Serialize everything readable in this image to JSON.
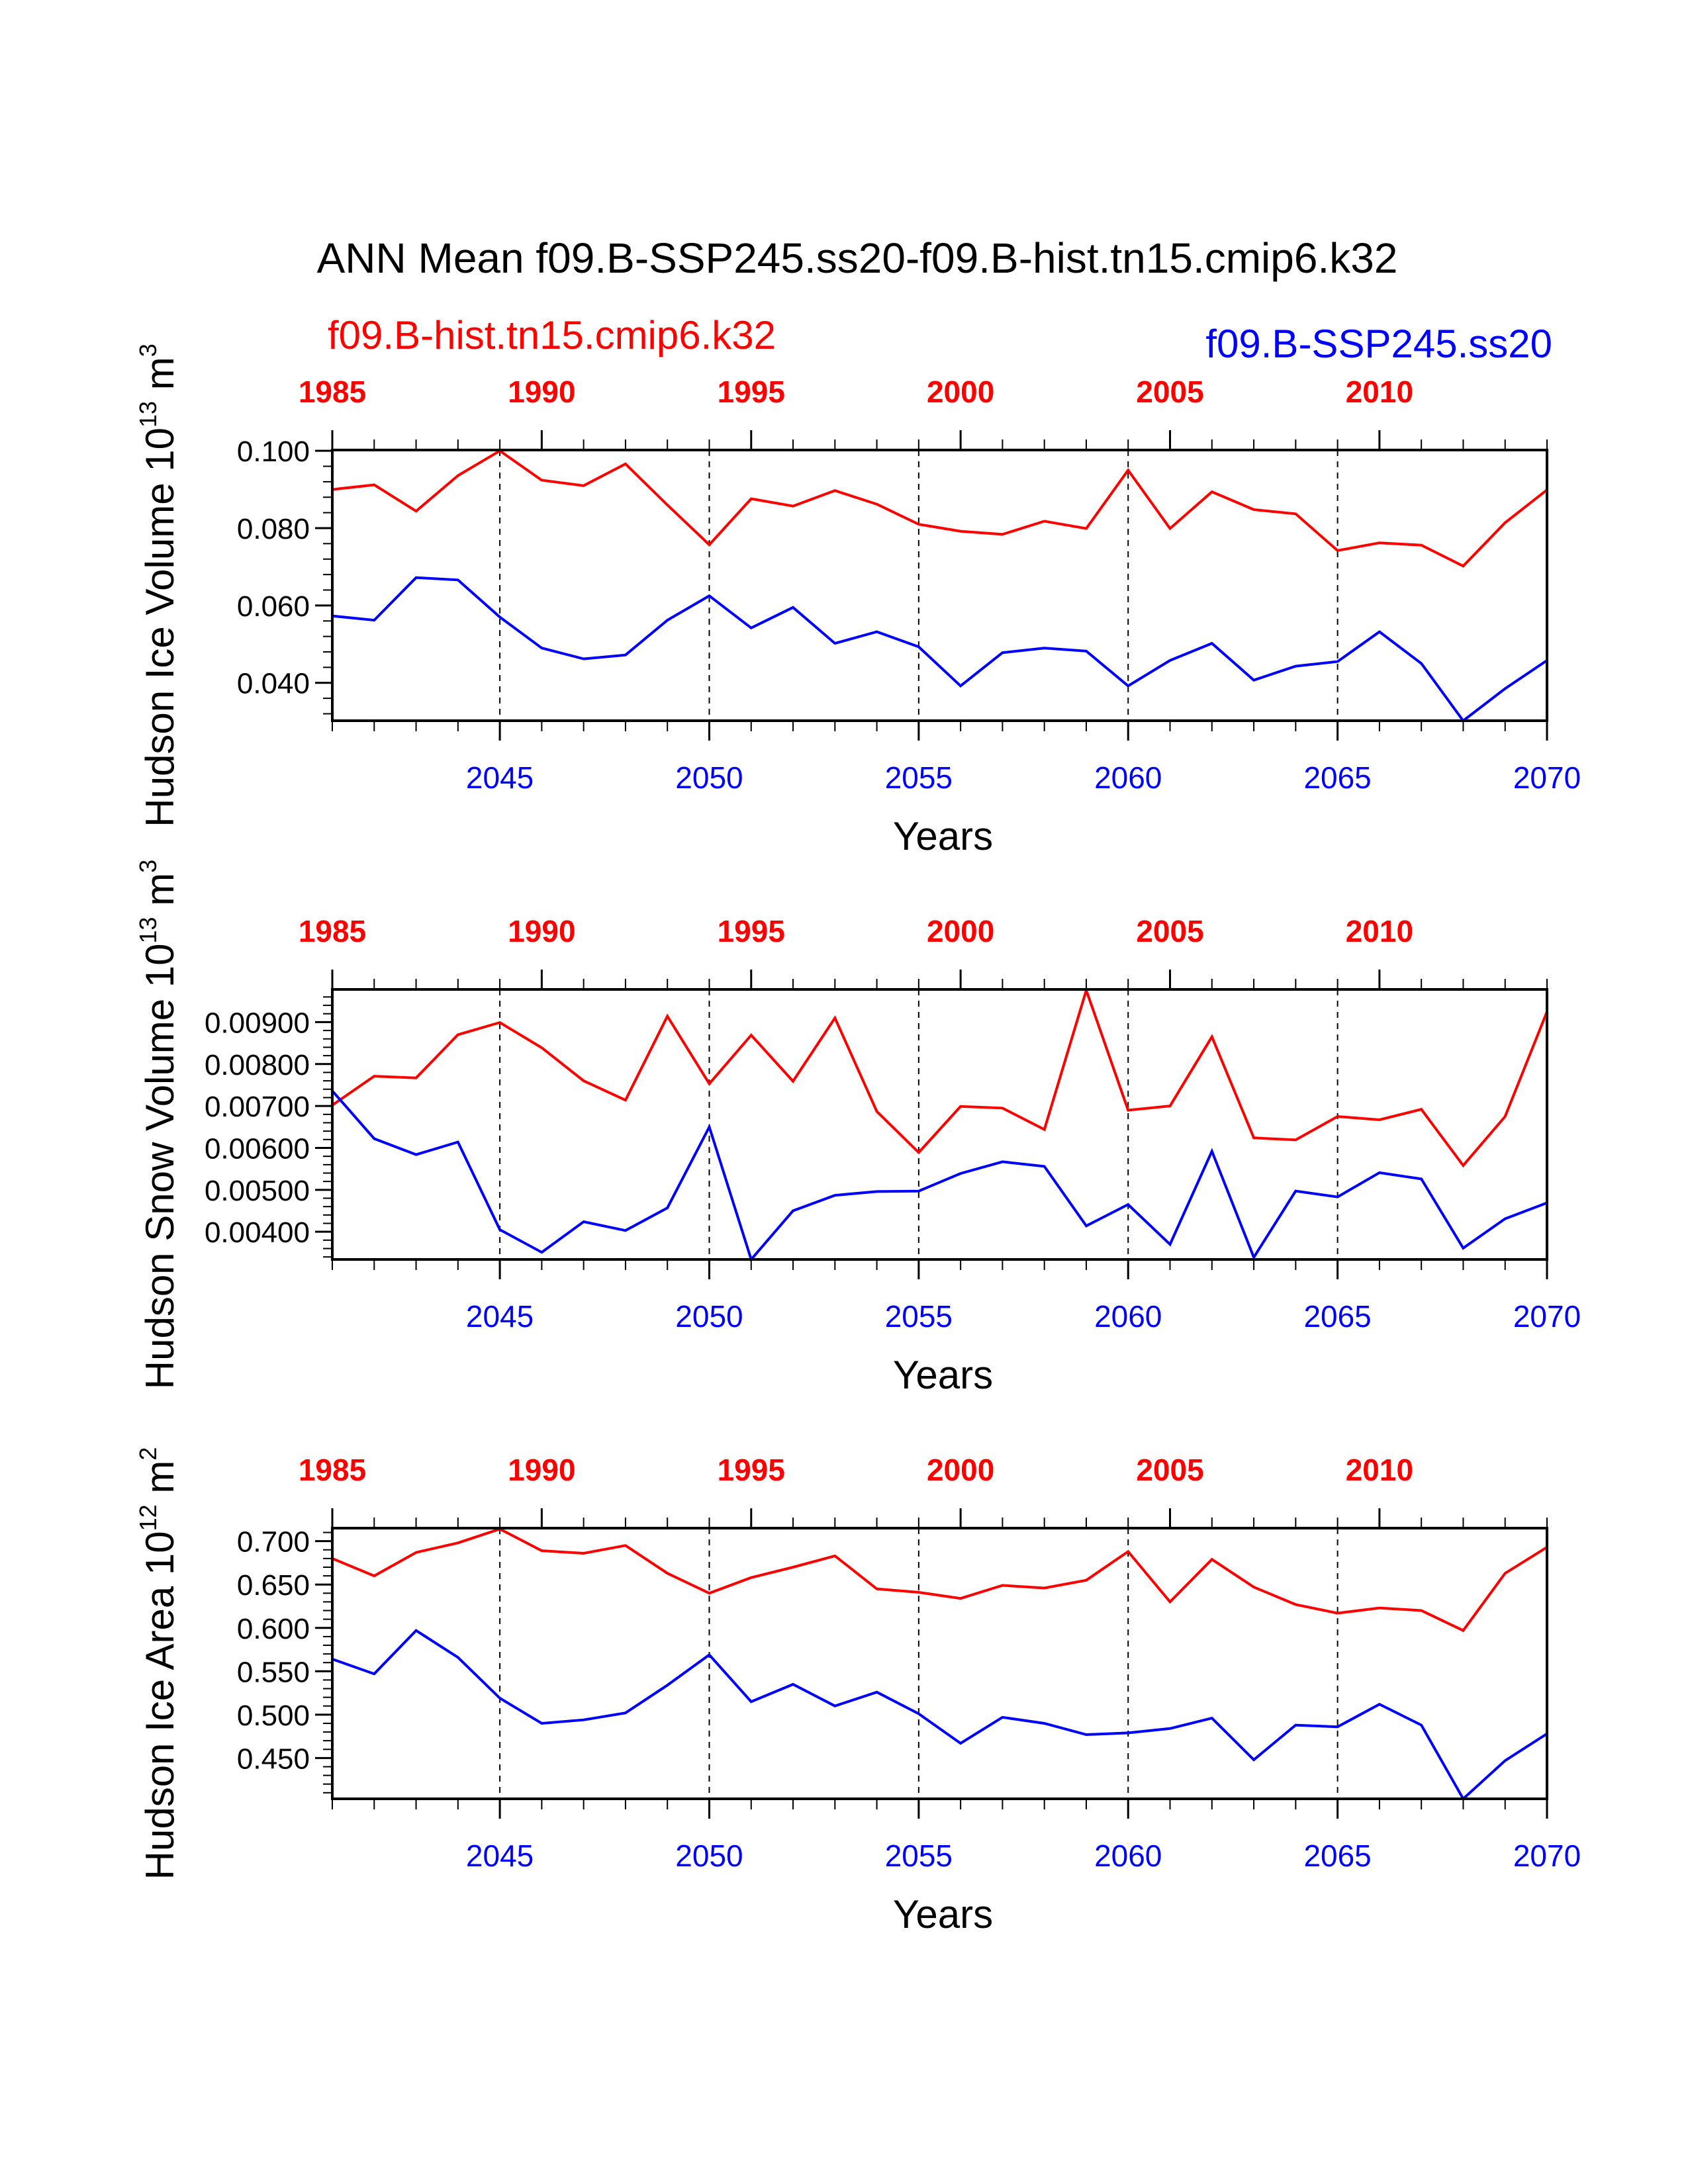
{
  "title": "ANN Mean f09.B-SSP245.ss20-f09.B-hist.tn15.cmip6.k32",
  "legend": {
    "left": {
      "text": "f09.B-hist.tn15.cmip6.k32",
      "color": "#ff0000"
    },
    "right": {
      "text": "f09.B-SSP245.ss20",
      "color": "#0000ff"
    }
  },
  "colors": {
    "hist": "#ff0000",
    "ssp": "#0000ff",
    "axis": "#000000"
  },
  "chart_data": [
    {
      "type": "line",
      "ylabel": "Hudson Ice Volume 10",
      "ylabel_exp": "13",
      "ylabel_unit": "m",
      "ylabel_unit_exp": "3",
      "xlabel": "Years",
      "ylim": [
        0.0302,
        0.1002
      ],
      "yticks": [
        0.04,
        0.06,
        0.08,
        0.1
      ],
      "yticklabels": [
        "0.040",
        "0.060",
        "0.080",
        "0.100"
      ],
      "minor_step": 0.004,
      "bottom_axis": {
        "range": [
          2041,
          2070
        ],
        "ticks": [
          2045,
          2050,
          2055,
          2060,
          2065,
          2070
        ],
        "labels": [
          "2045",
          "2050",
          "2055",
          "2060",
          "2065",
          "2070"
        ]
      },
      "top_axis": {
        "range": [
          1985,
          2014
        ],
        "ticks": [
          1985,
          1990,
          1995,
          2000,
          2005,
          2010
        ],
        "labels": [
          "1985",
          "1990",
          "1995",
          "2000",
          "2005",
          "2010"
        ]
      },
      "series": [
        {
          "name": "f09.B-hist.tn15.cmip6.k32",
          "color": "#ff0000",
          "x_start": 1985,
          "values": [
            0.09,
            0.0912,
            0.0844,
            0.0936,
            0.1,
            0.0924,
            0.091,
            0.0966,
            0.086,
            0.0757,
            0.0876,
            0.0857,
            0.0897,
            0.0862,
            0.081,
            0.0792,
            0.0784,
            0.0818,
            0.0799,
            0.095,
            0.0799,
            0.0894,
            0.0848,
            0.0837,
            0.0742,
            0.0762,
            0.0756,
            0.0702,
            0.0814,
            0.0899
          ]
        },
        {
          "name": "f09.B-SSP245.ss20",
          "color": "#0000ff",
          "x_start": 2041,
          "values": [
            0.0573,
            0.0562,
            0.0672,
            0.0666,
            0.057,
            0.049,
            0.0462,
            0.0472,
            0.0562,
            0.0625,
            0.0542,
            0.0595,
            0.0502,
            0.0532,
            0.0493,
            0.0392,
            0.0478,
            0.049,
            0.0482,
            0.0392,
            0.0458,
            0.0502,
            0.0407,
            0.0443,
            0.0455,
            0.0532,
            0.045,
            0.0302,
            0.0385,
            0.0458
          ]
        }
      ]
    },
    {
      "type": "line",
      "ylabel": "Hudson Snow Volume 10",
      "ylabel_exp": "13",
      "ylabel_unit": "m",
      "ylabel_unit_exp": "3",
      "xlabel": "Years",
      "ylim": [
        0.00334,
        0.00978
      ],
      "yticks": [
        0.004,
        0.005,
        0.006,
        0.007,
        0.008,
        0.009
      ],
      "yticklabels": [
        "0.00400",
        "0.00500",
        "0.00600",
        "0.00700",
        "0.00800",
        "0.00900"
      ],
      "minor_step": 0.0002,
      "bottom_axis": {
        "range": [
          2041,
          2070
        ],
        "ticks": [
          2045,
          2050,
          2055,
          2060,
          2065,
          2070
        ],
        "labels": [
          "2045",
          "2050",
          "2055",
          "2060",
          "2065",
          "2070"
        ]
      },
      "top_axis": {
        "range": [
          1985,
          2014
        ],
        "ticks": [
          1985,
          1990,
          1995,
          2000,
          2005,
          2010
        ],
        "labels": [
          "1985",
          "1990",
          "1995",
          "2000",
          "2005",
          "2010"
        ]
      },
      "series": [
        {
          "name": "f09.B-hist.tn15.cmip6.k32",
          "color": "#ff0000",
          "x_start": 1985,
          "values": [
            0.00702,
            0.00771,
            0.00767,
            0.0087,
            0.00899,
            0.00839,
            0.0076,
            0.00714,
            0.00914,
            0.00753,
            0.00869,
            0.00759,
            0.0091,
            0.00687,
            0.00589,
            0.00699,
            0.00695,
            0.00644,
            0.00976,
            0.0069,
            0.007,
            0.00865,
            0.00624,
            0.00619,
            0.00675,
            0.00667,
            0.00692,
            0.00558,
            0.00675,
            0.00925
          ]
        },
        {
          "name": "f09.B-SSP245.ss20",
          "color": "#0000ff",
          "x_start": 2041,
          "values": [
            0.00736,
            0.00622,
            0.00584,
            0.00614,
            0.00405,
            0.00351,
            0.00424,
            0.00403,
            0.00457,
            0.0065,
            0.00334,
            0.0045,
            0.00487,
            0.00496,
            0.00497,
            0.00539,
            0.00567,
            0.00556,
            0.00414,
            0.00465,
            0.0037,
            0.00592,
            0.00339,
            0.00497,
            0.00483,
            0.00541,
            0.00526,
            0.00361,
            0.00431,
            0.00469
          ]
        }
      ]
    },
    {
      "type": "line",
      "ylabel": "Hudson Ice Area 10",
      "ylabel_exp": "12",
      "ylabel_unit": "m",
      "ylabel_unit_exp": "2",
      "xlabel": "Years",
      "ylim": [
        0.403,
        0.715
      ],
      "yticks": [
        0.45,
        0.5,
        0.55,
        0.6,
        0.65,
        0.7
      ],
      "yticklabels": [
        "0.450",
        "0.500",
        "0.550",
        "0.600",
        "0.650",
        "0.700"
      ],
      "minor_step": 0.01,
      "bottom_axis": {
        "range": [
          2041,
          2070
        ],
        "ticks": [
          2045,
          2050,
          2055,
          2060,
          2065,
          2070
        ],
        "labels": [
          "2045",
          "2050",
          "2055",
          "2060",
          "2065",
          "2070"
        ]
      },
      "top_axis": {
        "range": [
          1985,
          2014
        ],
        "ticks": [
          1985,
          1990,
          1995,
          2000,
          2005,
          2010
        ],
        "labels": [
          "1985",
          "1990",
          "1995",
          "2000",
          "2005",
          "2010"
        ]
      },
      "series": [
        {
          "name": "f09.B-hist.tn15.cmip6.k32",
          "color": "#ff0000",
          "x_start": 1985,
          "values": [
            0.68,
            0.66,
            0.687,
            0.698,
            0.714,
            0.689,
            0.686,
            0.695,
            0.663,
            0.64,
            0.658,
            0.67,
            0.683,
            0.645,
            0.641,
            0.634,
            0.649,
            0.646,
            0.655,
            0.688,
            0.63,
            0.679,
            0.647,
            0.627,
            0.617,
            0.623,
            0.62,
            0.597,
            0.663,
            0.693
          ]
        },
        {
          "name": "f09.B-SSP245.ss20",
          "color": "#0000ff",
          "x_start": 2041,
          "values": [
            0.564,
            0.547,
            0.597,
            0.566,
            0.519,
            0.49,
            0.494,
            0.502,
            0.534,
            0.569,
            0.515,
            0.535,
            0.51,
            0.526,
            0.501,
            0.467,
            0.497,
            0.49,
            0.477,
            0.479,
            0.484,
            0.496,
            0.448,
            0.488,
            0.486,
            0.512,
            0.488,
            0.403,
            0.447,
            0.478
          ]
        }
      ]
    }
  ]
}
